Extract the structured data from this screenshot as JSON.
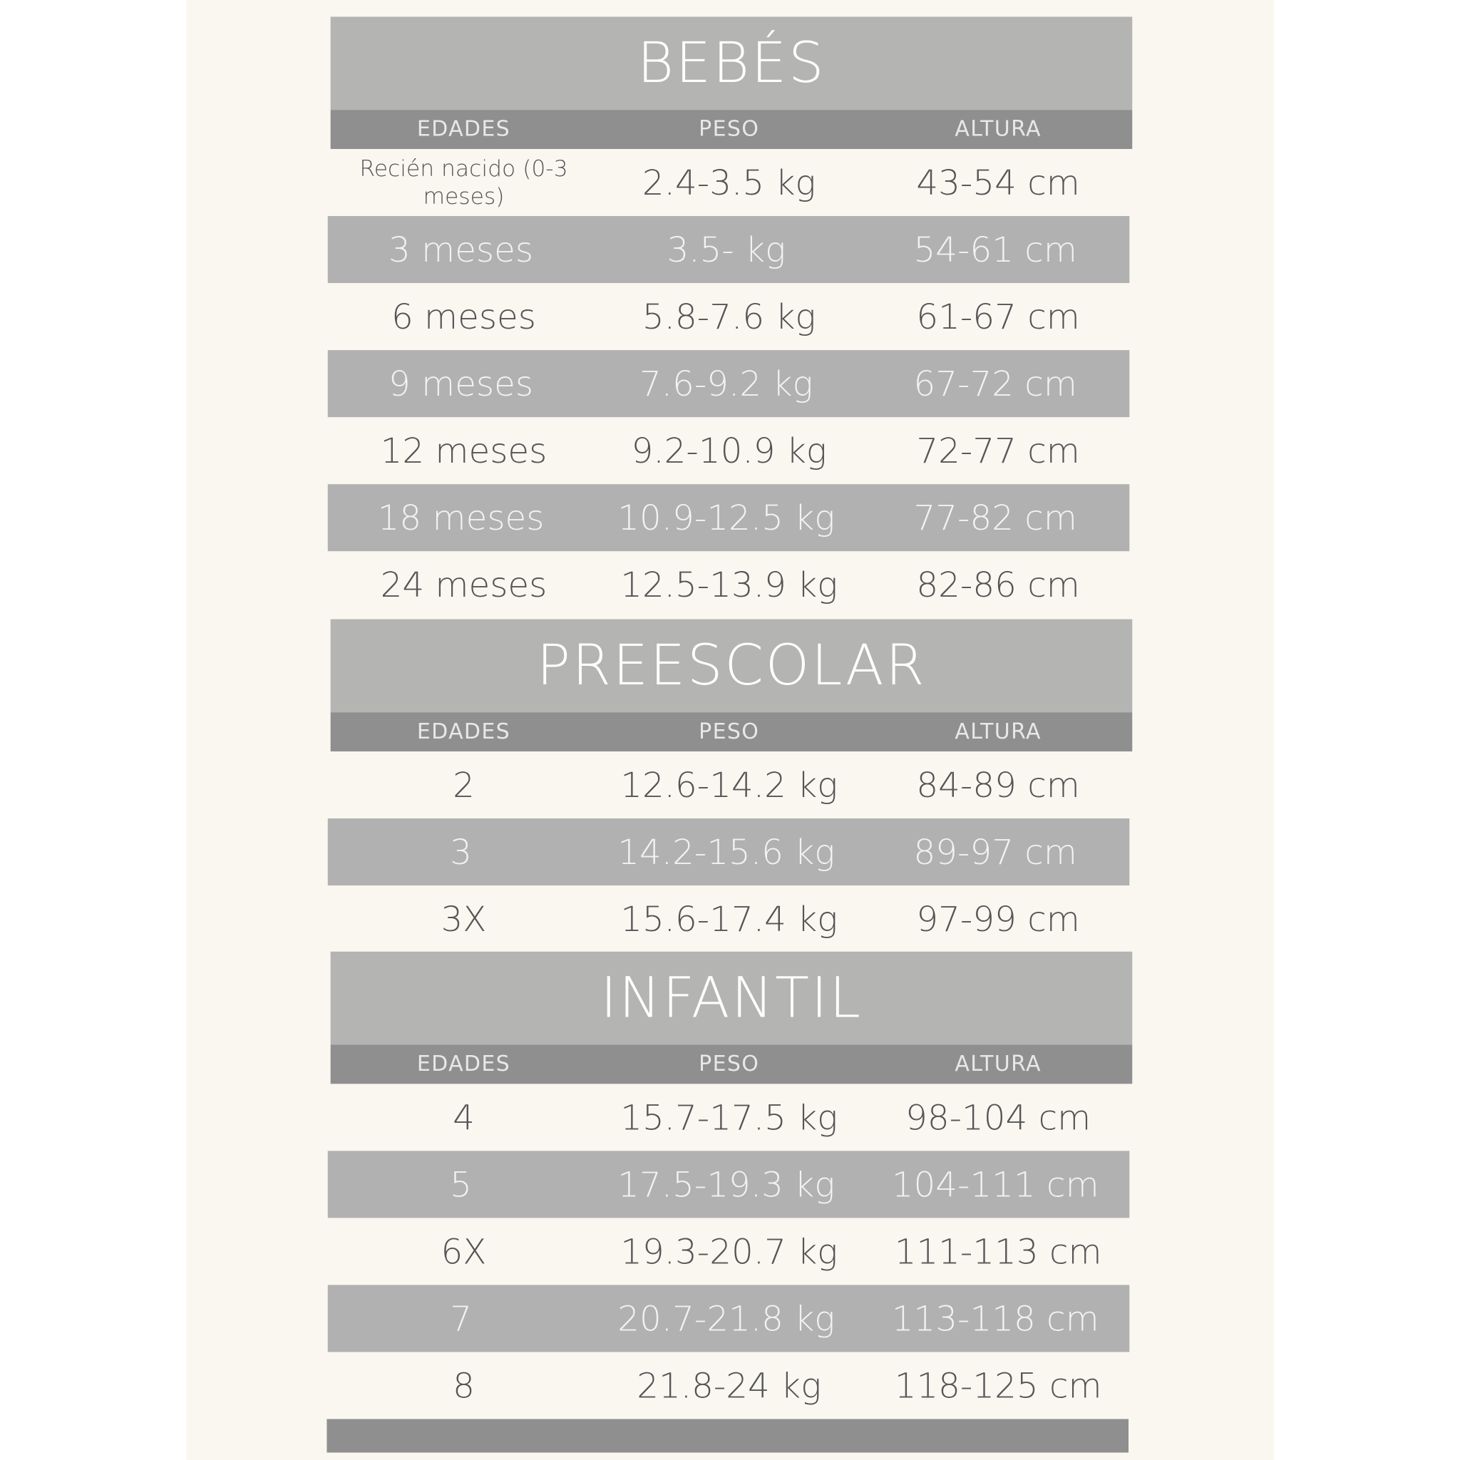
{
  "colors": {
    "background": "#faf7f1",
    "header": "#b4b4b2",
    "subheader": "#8f8f8f",
    "stripe": "#b1b1b1",
    "text": "#555555"
  },
  "columns": [
    "EDADES",
    "PESO",
    "ALTURA"
  ],
  "sections": [
    {
      "title": "BEBÉS",
      "rows": [
        [
          "Recién nacido (0-3 meses)",
          "2.4-3.5 kg",
          "43-54 cm"
        ],
        [
          "3 meses",
          "3.5- kg",
          "54-61 cm"
        ],
        [
          "6 meses",
          "5.8-7.6 kg",
          "61-67 cm"
        ],
        [
          "9 meses",
          "7.6-9.2 kg",
          "67-72 cm"
        ],
        [
          "12 meses",
          "9.2-10.9 kg",
          "72-77 cm"
        ],
        [
          "18 meses",
          "10.9-12.5 kg",
          "77-82 cm"
        ],
        [
          "24 meses",
          "12.5-13.9 kg",
          "82-86 cm"
        ]
      ]
    },
    {
      "title": "PREESCOLAR",
      "rows": [
        [
          "2",
          "12.6-14.2 kg",
          "84-89 cm"
        ],
        [
          "3",
          "14.2-15.6 kg",
          "89-97 cm"
        ],
        [
          "3X",
          "15.6-17.4 kg",
          "97-99 cm"
        ]
      ]
    },
    {
      "title": "INFANTIL",
      "rows": [
        [
          "4",
          "15.7-17.5 kg",
          "98-104 cm"
        ],
        [
          "5",
          "17.5-19.3 kg",
          "104-111 cm"
        ],
        [
          "6X",
          "19.3-20.7 kg",
          "111-113 cm"
        ],
        [
          "7",
          "20.7-21.8 kg",
          "113-118 cm"
        ],
        [
          "8",
          "21.8-24 kg",
          "118-125 cm"
        ]
      ]
    }
  ]
}
